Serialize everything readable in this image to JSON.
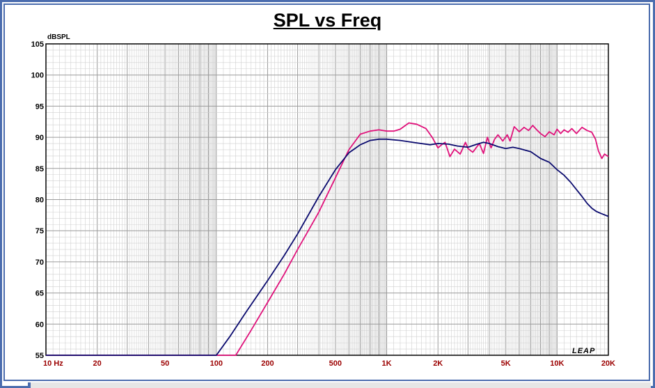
{
  "chart_data": {
    "type": "line",
    "title": "SPL vs Freq",
    "ylabel": "dBSPL",
    "xscale": "log",
    "xlim": [
      10,
      20000
    ],
    "ylim": [
      55,
      105
    ],
    "yticks": [
      55,
      60,
      65,
      70,
      75,
      80,
      85,
      90,
      95,
      100,
      105
    ],
    "xticks": [
      {
        "value": 10,
        "label": "10  Hz"
      },
      {
        "value": 20,
        "label": "20"
      },
      {
        "value": 50,
        "label": "50"
      },
      {
        "value": 100,
        "label": "100"
      },
      {
        "value": 200,
        "label": "200"
      },
      {
        "value": 500,
        "label": "500"
      },
      {
        "value": 1000,
        "label": "1K"
      },
      {
        "value": 2000,
        "label": "2K"
      },
      {
        "value": 5000,
        "label": "5K"
      },
      {
        "value": 10000,
        "label": "10K"
      },
      {
        "value": 20000,
        "label": "20K"
      }
    ],
    "grid": true,
    "logo": "LEAP",
    "series": [
      {
        "color": "#e0107a",
        "x": [
          10,
          130,
          160,
          200,
          250,
          300,
          400,
          500,
          600,
          700,
          800,
          900,
          1000,
          1100,
          1200,
          1350,
          1500,
          1700,
          1850,
          2000,
          2100,
          2200,
          2350,
          2500,
          2700,
          2900,
          3000,
          3200,
          3500,
          3700,
          3900,
          4100,
          4300,
          4500,
          4800,
          5100,
          5300,
          5600,
          6000,
          6400,
          6800,
          7200,
          7600,
          8000,
          8500,
          9000,
          9600,
          10000,
          10500,
          11000,
          11600,
          12200,
          13000,
          14000,
          15000,
          16000,
          16800,
          17500,
          18300,
          19000,
          20000
        ],
        "y": [
          55,
          55,
          59,
          63.5,
          68,
          72,
          78,
          83.5,
          88,
          90.5,
          91,
          91.2,
          91,
          91,
          91.3,
          92.3,
          92.1,
          91.4,
          90,
          88.3,
          88.8,
          89.2,
          86.9,
          88.1,
          87.3,
          89.2,
          88.2,
          87.6,
          89,
          87.4,
          90,
          88.3,
          89.7,
          90.4,
          89.4,
          90.4,
          89.4,
          91.7,
          90.9,
          91.6,
          91.1,
          91.9,
          91.2,
          90.6,
          90.1,
          90.9,
          90.4,
          91.3,
          90.6,
          91.2,
          90.8,
          91.4,
          90.6,
          91.6,
          91.1,
          90.8,
          89.7,
          87.8,
          86.6,
          87.3,
          86.9
        ]
      },
      {
        "color": "#0a0a6e",
        "x": [
          10,
          100,
          120,
          150,
          200,
          250,
          300,
          400,
          500,
          600,
          700,
          800,
          900,
          1000,
          1200,
          1500,
          1800,
          2000,
          2300,
          2600,
          3000,
          3400,
          3700,
          4000,
          4500,
          5000,
          5500,
          6000,
          7000,
          8000,
          9000,
          10000,
          11000,
          12000,
          13000,
          14000,
          15000,
          16000,
          17000,
          18000,
          20000
        ],
        "y": [
          55,
          55,
          58,
          62,
          67,
          71,
          74.5,
          80.5,
          84.8,
          87.5,
          88.8,
          89.5,
          89.7,
          89.7,
          89.5,
          89.1,
          88.8,
          89,
          88.9,
          88.6,
          88.4,
          88.9,
          89.2,
          89,
          88.5,
          88.2,
          88.4,
          88.2,
          87.7,
          86.6,
          86,
          84.8,
          83.9,
          82.8,
          81.6,
          80.5,
          79.4,
          78.6,
          78.1,
          77.8,
          77.3
        ]
      }
    ]
  }
}
